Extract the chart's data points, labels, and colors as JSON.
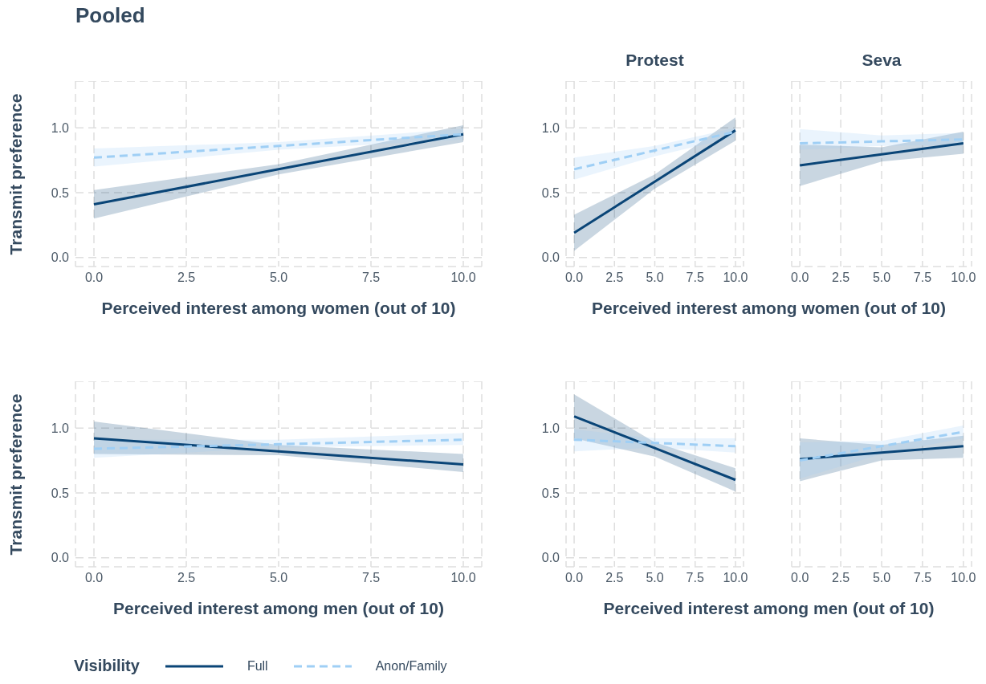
{
  "chart_data": [
    {
      "type": "line",
      "title": "Pooled",
      "xlabel": "Perceived interest among women (out of 10)",
      "ylabel": "Transmit preference",
      "x": [
        0,
        5,
        10
      ],
      "xlim": [
        -0.5,
        10.5
      ],
      "ylim": [
        -0.07,
        1.36
      ],
      "xticks": [
        {
          "value": 0,
          "label": "0.0"
        },
        {
          "value": 2.5,
          "label": "2.5"
        },
        {
          "value": 5,
          "label": "5.0"
        },
        {
          "value": 7.5,
          "label": "7.5"
        },
        {
          "value": 10,
          "label": "10.0"
        }
      ],
      "yticks": [
        {
          "value": 0,
          "label": "0.0"
        },
        {
          "value": 0.5,
          "label": "0.5"
        },
        {
          "value": 1,
          "label": "1.0"
        }
      ],
      "grid": true,
      "series": [
        {
          "color": "#0a4577",
          "line_style": "solid",
          "values": [
            0.41,
            0.68,
            0.95
          ],
          "lower": [
            0.3,
            0.64,
            0.89
          ],
          "upper": [
            0.52,
            0.72,
            1.02
          ]
        },
        {
          "color": "#9fcff5",
          "line_style": "dashed",
          "values": [
            0.77,
            0.86,
            0.95
          ],
          "lower": [
            0.7,
            0.83,
            0.91
          ],
          "upper": [
            0.84,
            0.89,
            0.99
          ]
        }
      ]
    },
    {
      "type": "line",
      "title": "Protest",
      "xlabel": "Perceived interest among women (out of 10)",
      "x": [
        0,
        5,
        10
      ],
      "xlim": [
        -0.5,
        10.5
      ],
      "ylim": [
        -0.07,
        1.36
      ],
      "xticks": [
        {
          "value": 0,
          "label": "0.0"
        },
        {
          "value": 2.5,
          "label": "2.5"
        },
        {
          "value": 5,
          "label": "5.0"
        },
        {
          "value": 7.5,
          "label": "7.5"
        },
        {
          "value": 10,
          "label": "10.0"
        }
      ],
      "yticks": [
        {
          "value": 0,
          "label": "0.0"
        },
        {
          "value": 0.5,
          "label": "0.5"
        },
        {
          "value": 1,
          "label": "1.0"
        }
      ],
      "grid": true,
      "series": [
        {
          "color": "#0a4577",
          "line_style": "solid",
          "values": [
            0.19,
            0.585,
            0.98
          ],
          "lower": [
            0.05,
            0.53,
            0.9
          ],
          "upper": [
            0.33,
            0.64,
            1.08
          ]
        },
        {
          "color": "#9fcff5",
          "line_style": "dashed",
          "values": [
            0.68,
            0.825,
            0.97
          ],
          "lower": [
            0.6,
            0.78,
            0.93
          ],
          "upper": [
            0.77,
            0.86,
            1.0
          ]
        }
      ]
    },
    {
      "type": "line",
      "title": "Seva",
      "x": [
        0,
        5,
        10
      ],
      "xlim": [
        -0.5,
        10.5
      ],
      "ylim": [
        -0.07,
        1.36
      ],
      "xticks": [
        {
          "value": 0,
          "label": "0.0"
        },
        {
          "value": 2.5,
          "label": "2.5"
        },
        {
          "value": 5,
          "label": "5.0"
        },
        {
          "value": 7.5,
          "label": "7.5"
        },
        {
          "value": 10,
          "label": "10.0"
        }
      ],
      "yticks": [
        {
          "value": 0,
          "label": null
        },
        {
          "value": 0.5,
          "label": null
        },
        {
          "value": 1,
          "label": null
        }
      ],
      "grid": true,
      "tick_labels": "x",
      "series": [
        {
          "color": "#0a4577",
          "line_style": "solid",
          "values": [
            0.71,
            0.795,
            0.88
          ],
          "lower": [
            0.55,
            0.74,
            0.8
          ],
          "upper": [
            0.87,
            0.85,
            0.97
          ]
        },
        {
          "color": "#9fcff5",
          "line_style": "dashed",
          "values": [
            0.88,
            0.895,
            0.91
          ],
          "lower": [
            0.83,
            0.86,
            0.87
          ],
          "upper": [
            0.99,
            0.94,
            0.96
          ]
        }
      ]
    },
    {
      "type": "line",
      "xlabel": "Perceived interest among men (out of 10)",
      "ylabel": "Transmit preference",
      "legend_title": "Visibility",
      "legend": "bottom",
      "x": [
        0,
        5,
        10
      ],
      "xlim": [
        -0.5,
        10.5
      ],
      "ylim": [
        -0.07,
        1.36
      ],
      "xticks": [
        {
          "value": 0,
          "label": "0.0"
        },
        {
          "value": 2.5,
          "label": "2.5"
        },
        {
          "value": 5,
          "label": "5.0"
        },
        {
          "value": 7.5,
          "label": "7.5"
        },
        {
          "value": 10,
          "label": "10.0"
        }
      ],
      "yticks": [
        {
          "value": 0,
          "label": "0.0"
        },
        {
          "value": 0.5,
          "label": "0.5"
        },
        {
          "value": 1,
          "label": "1.0"
        }
      ],
      "grid": true,
      "series": [
        {
          "name": "Full",
          "color": "#0a4577",
          "line_style": "solid",
          "values": [
            0.92,
            0.82,
            0.72
          ],
          "lower": [
            0.8,
            0.79,
            0.66
          ],
          "upper": [
            1.05,
            0.87,
            0.8
          ]
        },
        {
          "name": "Anon/Family",
          "color": "#9fcff5",
          "line_style": "dashed",
          "values": [
            0.84,
            0.875,
            0.91
          ],
          "lower": [
            0.77,
            0.85,
            0.87
          ],
          "upper": [
            0.91,
            0.91,
            0.96
          ]
        }
      ]
    },
    {
      "type": "line",
      "xlabel": "Perceived interest among men (out of 10)",
      "x": [
        0,
        5,
        10
      ],
      "xlim": [
        -0.5,
        10.5
      ],
      "ylim": [
        -0.07,
        1.36
      ],
      "xticks": [
        {
          "value": 0,
          "label": "0.0"
        },
        {
          "value": 2.5,
          "label": "2.5"
        },
        {
          "value": 5,
          "label": "5.0"
        },
        {
          "value": 7.5,
          "label": "7.5"
        },
        {
          "value": 10,
          "label": "10.0"
        }
      ],
      "yticks": [
        {
          "value": 0,
          "label": "0.0"
        },
        {
          "value": 0.5,
          "label": "0.5"
        },
        {
          "value": 1,
          "label": "1.0"
        }
      ],
      "grid": true,
      "series": [
        {
          "color": "#0a4577",
          "line_style": "solid",
          "values": [
            1.09,
            0.845,
            0.6
          ],
          "lower": [
            0.92,
            0.78,
            0.51
          ],
          "upper": [
            1.26,
            0.89,
            0.69
          ]
        },
        {
          "color": "#9fcff5",
          "line_style": "dashed",
          "values": [
            0.91,
            0.885,
            0.86
          ],
          "lower": [
            0.82,
            0.85,
            0.81
          ],
          "upper": [
            0.99,
            0.92,
            0.92
          ]
        }
      ]
    },
    {
      "type": "line",
      "x": [
        0,
        5,
        10
      ],
      "xlim": [
        -0.5,
        10.5
      ],
      "ylim": [
        -0.07,
        1.36
      ],
      "xticks": [
        {
          "value": 0,
          "label": "0.0"
        },
        {
          "value": 2.5,
          "label": "2.5"
        },
        {
          "value": 5,
          "label": "5.0"
        },
        {
          "value": 7.5,
          "label": "7.5"
        },
        {
          "value": 10,
          "label": "10.0"
        }
      ],
      "yticks": [
        {
          "value": 0,
          "label": null
        },
        {
          "value": 0.5,
          "label": null
        },
        {
          "value": 1,
          "label": null
        }
      ],
      "grid": true,
      "tick_labels": "x",
      "series": [
        {
          "color": "#0a4577",
          "line_style": "solid",
          "values": [
            0.76,
            0.81,
            0.86
          ],
          "lower": [
            0.59,
            0.75,
            0.77
          ],
          "upper": [
            0.92,
            0.87,
            0.94
          ]
        },
        {
          "color": "#9fcff5",
          "line_style": "dashed",
          "values": [
            0.75,
            0.86,
            0.97
          ],
          "lower": [
            0.61,
            0.8,
            0.92
          ],
          "upper": [
            0.89,
            0.9,
            1.02
          ]
        }
      ]
    }
  ]
}
